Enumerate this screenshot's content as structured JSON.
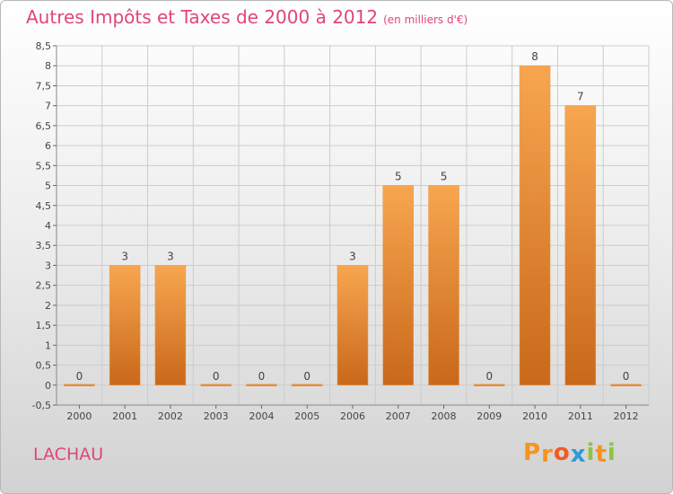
{
  "title": "Autres Impôts et Taxes de 2000 à 2012",
  "unit_label": "(en milliers d'€)",
  "town": "LACHAU",
  "logo_text": "Proxiti",
  "logo_colors": [
    "#f7941d",
    "#f7941d",
    "#f15a24",
    "#2e9bd6",
    "#8dc63f",
    "#f7941d",
    "#8dc63f"
  ],
  "colors": {
    "title": "#e0457a",
    "bar_top": "#f7a650",
    "bar_bottom": "#c9681a",
    "grid": "#cccccc"
  },
  "chart_data": {
    "type": "bar",
    "categories": [
      "2000",
      "2001",
      "2002",
      "2003",
      "2004",
      "2005",
      "2006",
      "2007",
      "2008",
      "2009",
      "2010",
      "2011",
      "2012"
    ],
    "values": [
      0,
      3,
      3,
      0,
      0,
      0,
      3,
      5,
      5,
      0,
      8,
      7,
      0
    ],
    "data_labels": [
      "0",
      "3",
      "3",
      "0",
      "0",
      "0",
      "3",
      "5",
      "5",
      "0",
      "8",
      "7",
      "0"
    ],
    "ylim": [
      -0.5,
      8.5
    ],
    "yticks": [
      "-0,5",
      "0",
      "0,5",
      "1",
      "1,5",
      "2",
      "2,5",
      "3",
      "3,5",
      "4",
      "4,5",
      "5",
      "5,5",
      "6",
      "6,5",
      "7",
      "7,5",
      "8",
      "8,5"
    ],
    "ytick_values": [
      -0.5,
      0,
      0.5,
      1,
      1.5,
      2,
      2.5,
      3,
      3.5,
      4,
      4.5,
      5,
      5.5,
      6,
      6.5,
      7,
      7.5,
      8,
      8.5
    ],
    "grid": true,
    "legend": "none"
  }
}
